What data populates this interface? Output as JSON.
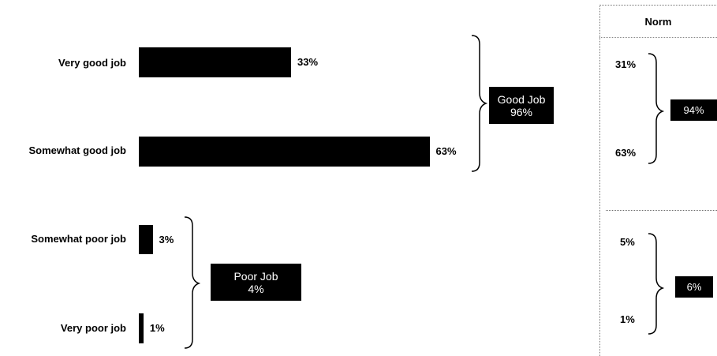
{
  "chart_data": {
    "type": "bar",
    "orientation": "horizontal",
    "categories": [
      "Very good job",
      "Somewhat good job",
      "Somewhat poor job",
      "Very poor job"
    ],
    "values": [
      33,
      63,
      3,
      1
    ],
    "value_labels": [
      "33%",
      "63%",
      "3%",
      "1%"
    ],
    "groups": [
      {
        "name": "Good Job",
        "value_label": "96%",
        "members": [
          "Very good job",
          "Somewhat good job"
        ]
      },
      {
        "name": "Poor Job",
        "value_label": "4%",
        "members": [
          "Somewhat poor job",
          "Very poor job"
        ]
      }
    ],
    "bar_color": "#000000",
    "norm": {
      "header": "Norm",
      "values": [
        "31%",
        "63%",
        "5%",
        "1%"
      ],
      "group_values": [
        "94%",
        "6%"
      ]
    }
  }
}
